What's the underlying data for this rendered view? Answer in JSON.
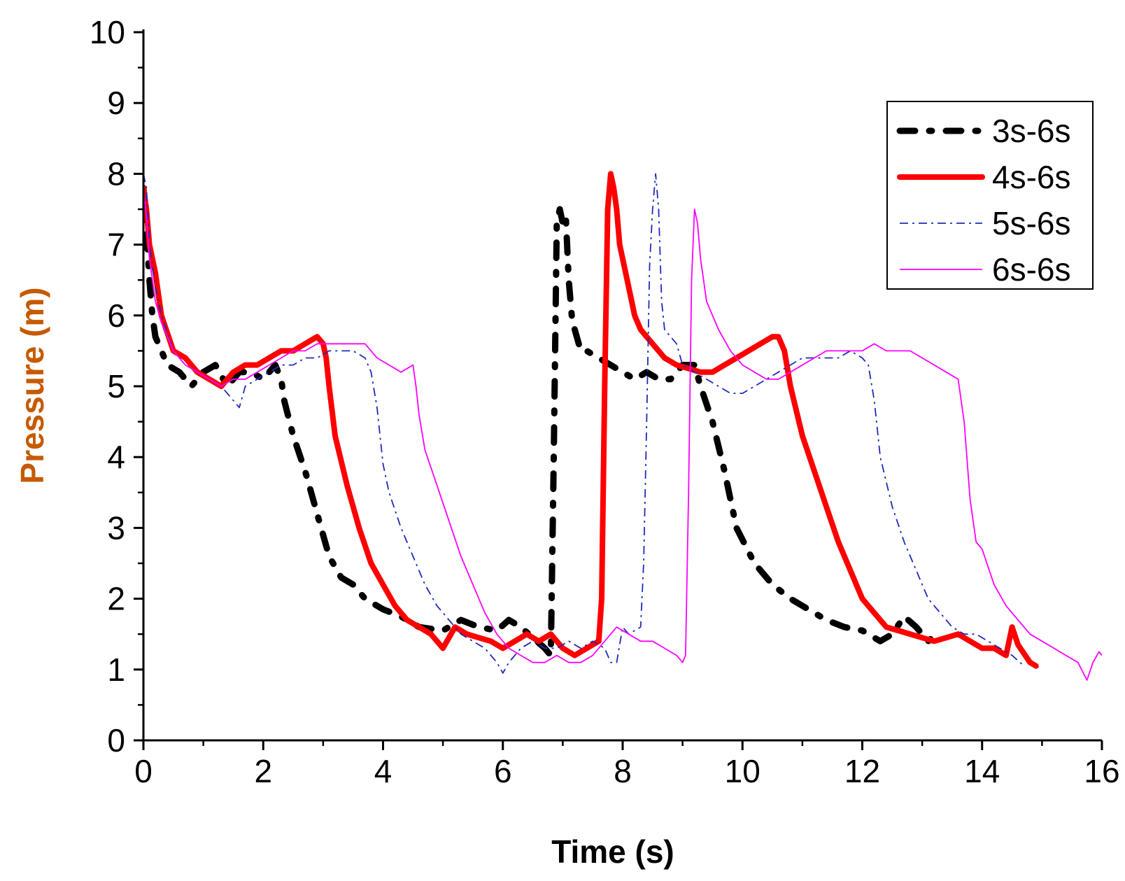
{
  "chart_data": {
    "type": "line",
    "title": "",
    "xlabel": "Time (s)",
    "ylabel": "Pressure (m)",
    "xlim": [
      0,
      16
    ],
    "ylim": [
      0,
      10
    ],
    "xticks": [
      0,
      2,
      4,
      6,
      8,
      10,
      12,
      14,
      16
    ],
    "yticks": [
      0,
      1,
      2,
      3,
      4,
      5,
      6,
      7,
      8,
      9,
      10
    ],
    "xlabel_color": "#000000",
    "ylabel_color": "#C65A00",
    "grid": false,
    "legend_position": "top-right",
    "series": [
      {
        "name": "3s-6s",
        "color": "#000000",
        "style": "dash-dot-thick",
        "x": [
          0,
          0.05,
          0.1,
          0.15,
          0.2,
          0.3,
          0.4,
          0.6,
          0.8,
          1.0,
          1.2,
          1.4,
          1.6,
          1.8,
          2.0,
          2.2,
          2.3,
          2.35,
          2.5,
          2.7,
          2.9,
          3.1,
          3.3,
          3.5,
          3.7,
          4.0,
          4.3,
          4.6,
          5.0,
          5.3,
          5.6,
          5.9,
          6.1,
          6.3,
          6.5,
          6.7,
          6.8,
          6.85,
          6.9,
          6.95,
          7.0,
          7.05,
          7.1,
          7.15,
          7.2,
          7.3,
          7.4,
          7.6,
          7.8,
          8.0,
          8.2,
          8.4,
          8.6,
          8.8,
          9.0,
          9.2,
          9.3,
          9.5,
          9.7,
          9.9,
          10.2,
          10.5,
          10.8,
          11.1,
          11.4,
          11.7,
          12.0,
          12.3,
          12.5,
          12.7,
          12.9,
          13.1,
          13.3
        ],
        "values": [
          7.8,
          7.2,
          6.5,
          6.0,
          5.7,
          5.5,
          5.3,
          5.2,
          5.0,
          5.2,
          5.3,
          5.0,
          5.2,
          5.2,
          5.1,
          5.3,
          5.1,
          4.8,
          4.3,
          3.8,
          3.2,
          2.6,
          2.3,
          2.2,
          2.0,
          1.85,
          1.75,
          1.6,
          1.55,
          1.7,
          1.6,
          1.55,
          1.7,
          1.6,
          1.45,
          1.3,
          1.2,
          4.0,
          7.3,
          7.5,
          7.3,
          7.4,
          6.5,
          6.0,
          5.8,
          5.5,
          5.5,
          5.4,
          5.3,
          5.2,
          5.1,
          5.2,
          5.1,
          5.1,
          5.3,
          5.3,
          5.0,
          4.5,
          3.8,
          3.0,
          2.5,
          2.2,
          2.0,
          1.85,
          1.7,
          1.6,
          1.55,
          1.4,
          1.5,
          1.75,
          1.6,
          1.4,
          1.55
        ]
      },
      {
        "name": "4s-6s",
        "color": "#FF0000",
        "style": "solid-thick",
        "x": [
          0,
          0.05,
          0.1,
          0.2,
          0.3,
          0.5,
          0.7,
          0.9,
          1.1,
          1.3,
          1.5,
          1.7,
          1.9,
          2.1,
          2.3,
          2.5,
          2.7,
          2.9,
          3.0,
          3.05,
          3.1,
          3.2,
          3.4,
          3.6,
          3.8,
          4.0,
          4.2,
          4.4,
          4.6,
          4.8,
          5.0,
          5.2,
          5.4,
          5.6,
          5.8,
          6.0,
          6.2,
          6.4,
          6.6,
          6.8,
          7.0,
          7.2,
          7.4,
          7.6,
          7.65,
          7.7,
          7.75,
          7.8,
          7.85,
          7.9,
          7.95,
          8.0,
          8.1,
          8.2,
          8.3,
          8.5,
          8.7,
          8.9,
          9.1,
          9.3,
          9.5,
          9.7,
          9.9,
          10.1,
          10.3,
          10.5,
          10.6,
          10.7,
          10.8,
          11.0,
          11.2,
          11.4,
          11.6,
          11.8,
          12.0,
          12.2,
          12.4,
          12.6,
          12.8,
          13.0,
          13.2,
          13.4,
          13.6,
          13.8,
          14.0,
          14.2,
          14.4,
          14.5,
          14.6,
          14.8,
          14.9
        ],
        "values": [
          7.8,
          7.5,
          7.0,
          6.6,
          6.0,
          5.5,
          5.4,
          5.2,
          5.1,
          5.0,
          5.2,
          5.3,
          5.3,
          5.4,
          5.5,
          5.5,
          5.6,
          5.7,
          5.6,
          5.4,
          5.0,
          4.3,
          3.6,
          3.0,
          2.5,
          2.2,
          1.9,
          1.7,
          1.6,
          1.5,
          1.3,
          1.6,
          1.5,
          1.45,
          1.4,
          1.3,
          1.4,
          1.5,
          1.4,
          1.5,
          1.3,
          1.2,
          1.3,
          1.4,
          2.0,
          5.0,
          7.5,
          8.0,
          7.8,
          7.5,
          7.0,
          6.8,
          6.4,
          6.0,
          5.8,
          5.6,
          5.4,
          5.3,
          5.25,
          5.2,
          5.2,
          5.3,
          5.4,
          5.5,
          5.6,
          5.7,
          5.7,
          5.5,
          5.0,
          4.3,
          3.8,
          3.3,
          2.8,
          2.4,
          2.0,
          1.8,
          1.6,
          1.55,
          1.5,
          1.45,
          1.4,
          1.45,
          1.5,
          1.4,
          1.3,
          1.3,
          1.2,
          1.6,
          1.35,
          1.1,
          1.05
        ]
      },
      {
        "name": "5s-6s",
        "color": "#1F2BB8",
        "style": "dash-dot-thin",
        "x": [
          0,
          0.05,
          0.1,
          0.2,
          0.3,
          0.5,
          0.7,
          0.9,
          1.1,
          1.3,
          1.5,
          1.6,
          1.7,
          1.9,
          2.1,
          2.3,
          2.5,
          2.7,
          2.9,
          3.1,
          3.3,
          3.5,
          3.7,
          3.8,
          3.9,
          4.0,
          4.1,
          4.3,
          4.5,
          4.7,
          4.9,
          5.1,
          5.3,
          5.5,
          5.7,
          5.9,
          6.0,
          6.1,
          6.3,
          6.5,
          6.7,
          6.9,
          7.1,
          7.3,
          7.5,
          7.7,
          7.8,
          7.9,
          8.0,
          8.1,
          8.3,
          8.35,
          8.4,
          8.45,
          8.5,
          8.55,
          8.6,
          8.65,
          8.7,
          8.8,
          8.9,
          9.0,
          9.2,
          9.4,
          9.6,
          9.8,
          10.0,
          10.2,
          10.4,
          10.6,
          10.8,
          11.0,
          11.2,
          11.4,
          11.6,
          11.8,
          12.0,
          12.1,
          12.2,
          12.3,
          12.5,
          12.7,
          12.9,
          13.1,
          13.3,
          13.5,
          13.7,
          13.9,
          14.1,
          14.3,
          14.5,
          14.7
        ],
        "values": [
          8.0,
          7.8,
          7.0,
          6.4,
          6.0,
          5.5,
          5.3,
          5.2,
          5.1,
          5.0,
          4.8,
          4.7,
          5.0,
          5.1,
          5.2,
          5.3,
          5.3,
          5.4,
          5.4,
          5.5,
          5.5,
          5.5,
          5.4,
          5.2,
          4.7,
          3.9,
          3.5,
          3.0,
          2.6,
          2.2,
          1.9,
          1.7,
          1.5,
          1.4,
          1.3,
          1.1,
          0.95,
          1.1,
          1.3,
          1.4,
          1.3,
          1.3,
          1.4,
          1.3,
          1.4,
          1.3,
          1.1,
          1.1,
          1.6,
          1.5,
          1.6,
          2.5,
          4.5,
          6.7,
          7.5,
          8.0,
          7.5,
          6.2,
          5.8,
          5.7,
          5.6,
          5.3,
          5.2,
          5.1,
          5.0,
          4.9,
          4.9,
          5.0,
          5.1,
          5.2,
          5.3,
          5.4,
          5.4,
          5.4,
          5.4,
          5.5,
          5.4,
          5.3,
          4.8,
          4.0,
          3.3,
          2.8,
          2.4,
          2.0,
          1.8,
          1.6,
          1.5,
          1.5,
          1.4,
          1.3,
          1.2,
          1.05
        ]
      },
      {
        "name": "6s-6s",
        "color": "#FF00FF",
        "style": "solid-thin",
        "x": [
          0,
          0.05,
          0.1,
          0.2,
          0.3,
          0.5,
          0.7,
          0.9,
          1.1,
          1.3,
          1.5,
          1.7,
          1.9,
          2.1,
          2.3,
          2.5,
          2.7,
          2.9,
          3.1,
          3.3,
          3.5,
          3.7,
          3.9,
          4.1,
          4.3,
          4.5,
          4.55,
          4.6,
          4.7,
          4.9,
          5.1,
          5.3,
          5.5,
          5.7,
          5.9,
          6.1,
          6.3,
          6.5,
          6.7,
          6.9,
          7.1,
          7.3,
          7.5,
          7.7,
          7.9,
          8.1,
          8.3,
          8.5,
          8.7,
          8.9,
          9.0,
          9.05,
          9.1,
          9.15,
          9.2,
          9.25,
          9.3,
          9.4,
          9.6,
          9.8,
          10.0,
          10.2,
          10.4,
          10.6,
          10.8,
          11.0,
          11.2,
          11.4,
          11.6,
          11.8,
          12.0,
          12.2,
          12.4,
          12.6,
          12.8,
          13.0,
          13.2,
          13.4,
          13.6,
          13.7,
          13.8,
          13.9,
          14.0,
          14.2,
          14.4,
          14.6,
          14.8,
          15.0,
          15.2,
          15.4,
          15.6,
          15.75,
          15.85,
          15.95,
          16.0
        ],
        "values": [
          7.8,
          7.4,
          6.8,
          6.2,
          5.9,
          5.5,
          5.3,
          5.2,
          5.1,
          5.0,
          5.1,
          5.1,
          5.2,
          5.3,
          5.4,
          5.5,
          5.5,
          5.6,
          5.6,
          5.6,
          5.6,
          5.6,
          5.4,
          5.3,
          5.2,
          5.3,
          5.0,
          4.6,
          4.1,
          3.6,
          3.1,
          2.6,
          2.2,
          1.8,
          1.5,
          1.3,
          1.2,
          1.1,
          1.1,
          1.2,
          1.1,
          1.1,
          1.2,
          1.4,
          1.6,
          1.5,
          1.4,
          1.4,
          1.3,
          1.2,
          1.1,
          1.2,
          3.5,
          6.5,
          7.5,
          7.3,
          6.8,
          6.2,
          5.8,
          5.5,
          5.3,
          5.2,
          5.1,
          5.1,
          5.2,
          5.3,
          5.4,
          5.5,
          5.5,
          5.5,
          5.5,
          5.6,
          5.5,
          5.5,
          5.5,
          5.4,
          5.3,
          5.2,
          5.1,
          4.5,
          3.4,
          2.8,
          2.7,
          2.2,
          1.9,
          1.7,
          1.5,
          1.4,
          1.3,
          1.2,
          1.1,
          0.85,
          1.1,
          1.25,
          1.2
        ]
      }
    ]
  }
}
